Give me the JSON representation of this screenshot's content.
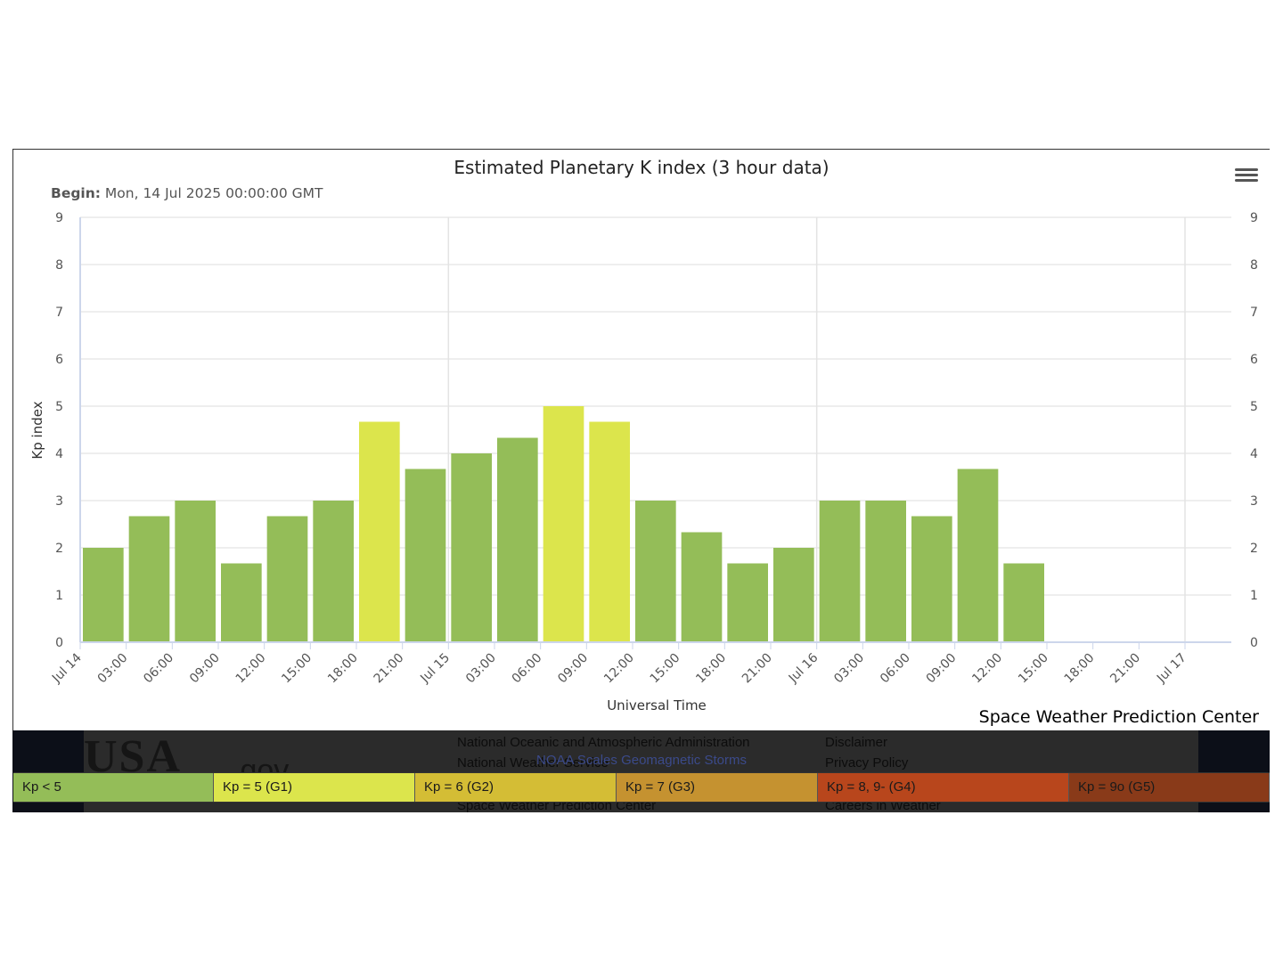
{
  "chart_data": {
    "type": "bar",
    "title": "Estimated Planetary K index (3 hour data)",
    "subtitle_label": "Begin:",
    "subtitle_value": "Mon, 14 Jul 2025 00:00:00 GMT",
    "xlabel": "Universal Time",
    "ylabel": "Kp index",
    "ylim": [
      0,
      9
    ],
    "yticks": [
      "0",
      "1",
      "2",
      "3",
      "4",
      "5",
      "6",
      "7",
      "8",
      "9"
    ],
    "xticks": [
      "Jul 14",
      "03:00",
      "06:00",
      "09:00",
      "12:00",
      "15:00",
      "18:00",
      "21:00",
      "Jul 15",
      "03:00",
      "06:00",
      "09:00",
      "12:00",
      "15:00",
      "18:00",
      "21:00",
      "Jul 16",
      "03:00",
      "06:00",
      "09:00",
      "12:00",
      "15:00",
      "18:00",
      "21:00",
      "Jul 17"
    ],
    "values": [
      2.0,
      2.67,
      3.0,
      1.67,
      2.67,
      3.0,
      4.67,
      3.67,
      4.0,
      4.33,
      5.0,
      4.67,
      3.0,
      2.33,
      1.67,
      2.0,
      3.0,
      3.0,
      2.67,
      3.67,
      1.67
    ],
    "grid": true,
    "colors": {
      "kp_below_5": "#94bd58",
      "kp_5": "#dce54c"
    }
  },
  "credit": "Space Weather Prediction Center",
  "scale": {
    "title": "NOAA Scales Geomagnetic Storms",
    "items": [
      {
        "label": "Kp < 5",
        "color": "#94bd58"
      },
      {
        "label": "Kp = 5 (G1)",
        "color": "#dce54c"
      },
      {
        "label": "Kp = 6 (G2)",
        "color": "#d4bd35"
      },
      {
        "label": "Kp = 7 (G3)",
        "color": "#c59230"
      },
      {
        "label": "Kp = 8, 9- (G4)",
        "color": "#b8461c"
      },
      {
        "label": "Kp = 9o (G5)",
        "color": "#893a19"
      }
    ]
  },
  "footer": {
    "logo": "USA",
    "logo_suffix": ".gov",
    "links_col1": [
      "National Oceanic and Atmospheric Administration",
      "National Weather Service",
      "Space Weather Prediction Center"
    ],
    "links_col2": [
      "Disclaimer",
      "Privacy Policy",
      "Careers in Weather"
    ]
  }
}
